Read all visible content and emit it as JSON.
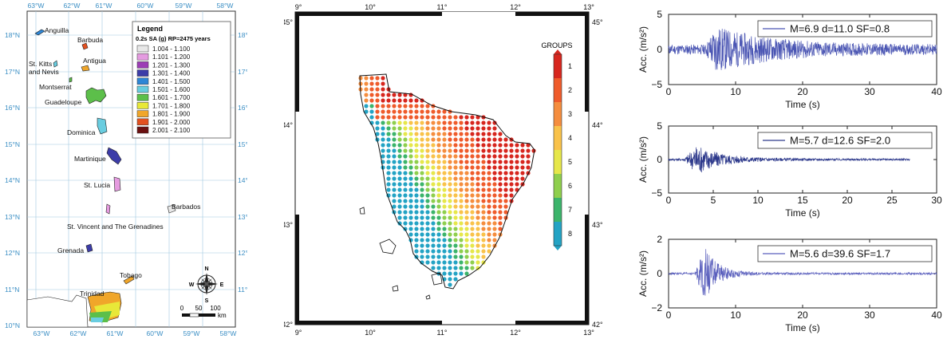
{
  "map_left": {
    "top_ticks": [
      "63°W",
      "62°W",
      "61°W",
      "60°W",
      "59°W",
      "58°W"
    ],
    "bottom_ticks": [
      "63°W",
      "62°W",
      "61°W",
      "60°W",
      "59°W",
      "58°W"
    ],
    "left_ticks": [
      "18°N",
      "17°N",
      "16°N",
      "15°N",
      "14°N",
      "13°N",
      "12°N",
      "11°N",
      "10°N"
    ],
    "right_ticks": [
      "18°N",
      "17°N",
      "16°N",
      "15°N",
      "14°N",
      "13°N",
      "12°N",
      "11°N"
    ],
    "islands": [
      "Anguilla",
      "Barbuda",
      "St. Kitts",
      "and Nevis",
      "Antigua",
      "Montserrat",
      "Guadeloupe",
      "Dominica",
      "Martinique",
      "St. Lucia",
      "Barbados",
      "St. Vincent and The Grenadines",
      "Grenada",
      "Tobago",
      "Trinidad"
    ],
    "legend": {
      "title": "Legend",
      "subtitle": "0.2s SA (g) RP=2475 years",
      "items": [
        {
          "label": "1.004 - 1.100",
          "color": "#e8e8e8"
        },
        {
          "label": "1.101 - 1.200",
          "color": "#e59be0"
        },
        {
          "label": "1.201 - 1.300",
          "color": "#9c3db5"
        },
        {
          "label": "1.301 - 1.400",
          "color": "#3c3ca8"
        },
        {
          "label": "1.401 - 1.500",
          "color": "#2e86d6"
        },
        {
          "label": "1.501 - 1.600",
          "color": "#69cde0"
        },
        {
          "label": "1.601 - 1.700",
          "color": "#5cbf4a"
        },
        {
          "label": "1.701 - 1.800",
          "color": "#e8e838"
        },
        {
          "label": "1.801 - 1.900",
          "color": "#f0a62a"
        },
        {
          "label": "1.901 - 2.000",
          "color": "#e3501f"
        },
        {
          "label": "2.001 - 2.100",
          "color": "#6b1010"
        }
      ]
    },
    "compass": {
      "n": "N",
      "s": "S",
      "e": "E",
      "w": "W"
    },
    "scale": {
      "labels": [
        "0",
        "50",
        "100"
      ],
      "unit": "km"
    }
  },
  "map_middle": {
    "top_ticks": [
      "9°",
      "10°",
      "11°",
      "12°",
      "13°"
    ],
    "bottom_ticks": [
      "9°",
      "10°",
      "11°",
      "12°",
      "13°"
    ],
    "left_ticks": [
      "45°",
      "44°",
      "43°",
      "42°"
    ],
    "right_ticks": [
      "45°",
      "44°",
      "43°",
      "42°"
    ],
    "colorbar_title": "GROUPS",
    "groups": [
      {
        "label": "1",
        "color": "#d7261e"
      },
      {
        "label": "2",
        "color": "#ef5b2b"
      },
      {
        "label": "3",
        "color": "#f58d3e"
      },
      {
        "label": "4",
        "color": "#f9c24a"
      },
      {
        "label": "5",
        "color": "#e6e74a"
      },
      {
        "label": "6",
        "color": "#8fcf4d"
      },
      {
        "label": "7",
        "color": "#3cb46b"
      },
      {
        "label": "8",
        "color": "#23a3c4"
      }
    ]
  },
  "chart_data": [
    {
      "type": "line",
      "ylabel": "Acc. (m/s²)",
      "xlabel": "Time (s)",
      "xlim": [
        0,
        40
      ],
      "ylim": [
        -5,
        5
      ],
      "xticks": [
        "0",
        "10",
        "20",
        "30",
        "40"
      ],
      "yticks": [
        "5",
        "0",
        "−5"
      ],
      "legend": "M=6.9 d=11.0 SF=0.8",
      "series_color": "#4a55b3",
      "duration": 40
    },
    {
      "type": "line",
      "ylabel": "Acc. (m/s²)",
      "xlabel": "Time (s)",
      "xlim": [
        0,
        30
      ],
      "ylim": [
        -5,
        5
      ],
      "xticks": [
        "0",
        "5",
        "10",
        "15",
        "20",
        "25",
        "30"
      ],
      "yticks": [
        "5",
        "0",
        "−5"
      ],
      "legend": "M=5.7 d=12.6 SF=2.0",
      "series_color": "#2e3a8c",
      "duration": 27
    },
    {
      "type": "line",
      "ylabel": "Acc. (m/s²)",
      "xlabel": "Time (s)",
      "xlim": [
        0,
        40
      ],
      "ylim": [
        -2,
        2
      ],
      "xticks": [
        "0",
        "10",
        "20",
        "30",
        "40"
      ],
      "yticks": [
        "2",
        "0",
        "−2"
      ],
      "legend": "M=5.6 d=39.6 SF=1.7",
      "series_color": "#5a5fbd",
      "duration": 40
    }
  ]
}
